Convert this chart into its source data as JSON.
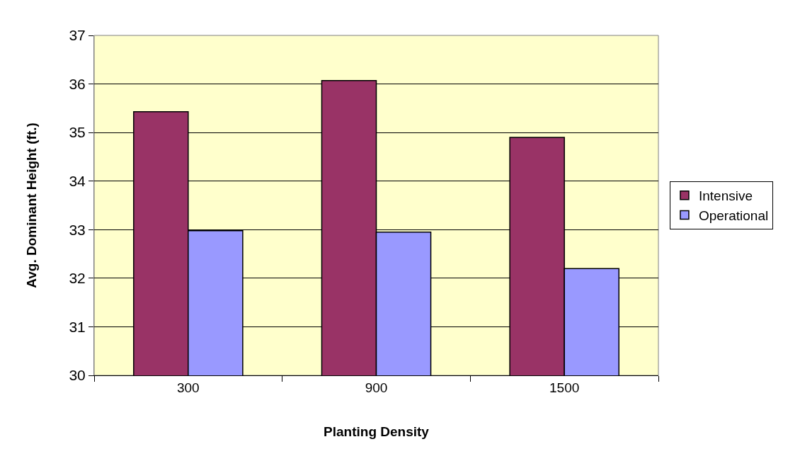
{
  "chart_data": {
    "type": "bar",
    "xlabel": "Planting Density",
    "ylabel": "Avg. Dominant Height (ft.)",
    "categories": [
      "300",
      "900",
      "1500"
    ],
    "series": [
      {
        "name": "Intensive",
        "color": "#993366",
        "values": [
          35.43,
          36.07,
          34.9
        ]
      },
      {
        "name": "Operational",
        "color": "#9999ff",
        "values": [
          32.98,
          32.95,
          32.2
        ]
      }
    ],
    "ylim": [
      30,
      37
    ],
    "yticks": [
      30,
      31,
      32,
      33,
      34,
      35,
      36,
      37
    ],
    "grid": "y",
    "legend": "right"
  }
}
